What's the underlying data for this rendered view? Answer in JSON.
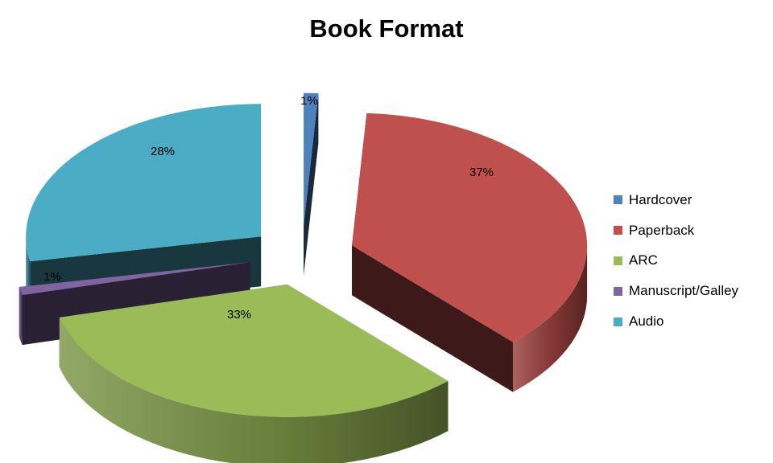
{
  "chart_data": {
    "type": "pie",
    "title": "Book Format",
    "categories": [
      "Hardcover",
      "Paperback",
      "ARC",
      "Manuscript/Galley",
      "Audio"
    ],
    "values": [
      1,
      37,
      33,
      1,
      28
    ],
    "data_labels": [
      "1%",
      "37%",
      "33%",
      "1%",
      "28%"
    ],
    "colors": [
      "#4F81BD",
      "#C0504D",
      "#9BBB59",
      "#8064A2",
      "#4BACC6"
    ],
    "style": "3d-exploded",
    "legend_position": "right"
  }
}
